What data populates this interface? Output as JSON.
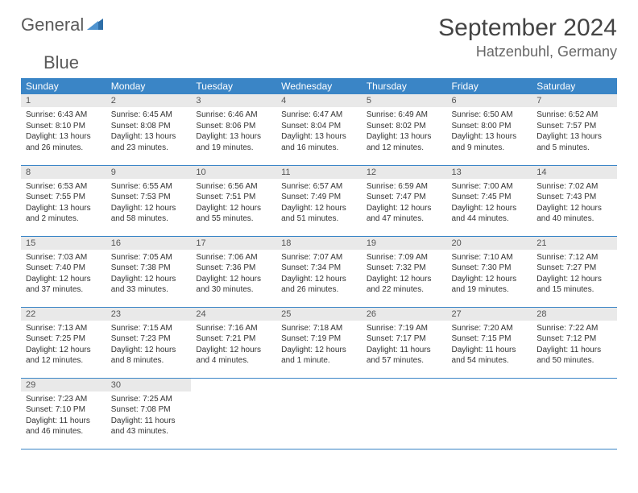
{
  "logo": {
    "text_a": "General",
    "text_b": "Blue"
  },
  "title": "September 2024",
  "location": "Hatzenbuhl, Germany",
  "colors": {
    "header_bg": "#3a85c6",
    "header_fg": "#ffffff",
    "daynum_bg": "#e9e9e9",
    "border": "#3a85c6",
    "logo_gray": "#5a5a5a",
    "logo_blue": "#3a7ab8"
  },
  "weekdays": [
    "Sunday",
    "Monday",
    "Tuesday",
    "Wednesday",
    "Thursday",
    "Friday",
    "Saturday"
  ],
  "weeks": [
    [
      {
        "n": "1",
        "sr": "Sunrise: 6:43 AM",
        "ss": "Sunset: 8:10 PM",
        "d1": "Daylight: 13 hours",
        "d2": "and 26 minutes."
      },
      {
        "n": "2",
        "sr": "Sunrise: 6:45 AM",
        "ss": "Sunset: 8:08 PM",
        "d1": "Daylight: 13 hours",
        "d2": "and 23 minutes."
      },
      {
        "n": "3",
        "sr": "Sunrise: 6:46 AM",
        "ss": "Sunset: 8:06 PM",
        "d1": "Daylight: 13 hours",
        "d2": "and 19 minutes."
      },
      {
        "n": "4",
        "sr": "Sunrise: 6:47 AM",
        "ss": "Sunset: 8:04 PM",
        "d1": "Daylight: 13 hours",
        "d2": "and 16 minutes."
      },
      {
        "n": "5",
        "sr": "Sunrise: 6:49 AM",
        "ss": "Sunset: 8:02 PM",
        "d1": "Daylight: 13 hours",
        "d2": "and 12 minutes."
      },
      {
        "n": "6",
        "sr": "Sunrise: 6:50 AM",
        "ss": "Sunset: 8:00 PM",
        "d1": "Daylight: 13 hours",
        "d2": "and 9 minutes."
      },
      {
        "n": "7",
        "sr": "Sunrise: 6:52 AM",
        "ss": "Sunset: 7:57 PM",
        "d1": "Daylight: 13 hours",
        "d2": "and 5 minutes."
      }
    ],
    [
      {
        "n": "8",
        "sr": "Sunrise: 6:53 AM",
        "ss": "Sunset: 7:55 PM",
        "d1": "Daylight: 13 hours",
        "d2": "and 2 minutes."
      },
      {
        "n": "9",
        "sr": "Sunrise: 6:55 AM",
        "ss": "Sunset: 7:53 PM",
        "d1": "Daylight: 12 hours",
        "d2": "and 58 minutes."
      },
      {
        "n": "10",
        "sr": "Sunrise: 6:56 AM",
        "ss": "Sunset: 7:51 PM",
        "d1": "Daylight: 12 hours",
        "d2": "and 55 minutes."
      },
      {
        "n": "11",
        "sr": "Sunrise: 6:57 AM",
        "ss": "Sunset: 7:49 PM",
        "d1": "Daylight: 12 hours",
        "d2": "and 51 minutes."
      },
      {
        "n": "12",
        "sr": "Sunrise: 6:59 AM",
        "ss": "Sunset: 7:47 PM",
        "d1": "Daylight: 12 hours",
        "d2": "and 47 minutes."
      },
      {
        "n": "13",
        "sr": "Sunrise: 7:00 AM",
        "ss": "Sunset: 7:45 PM",
        "d1": "Daylight: 12 hours",
        "d2": "and 44 minutes."
      },
      {
        "n": "14",
        "sr": "Sunrise: 7:02 AM",
        "ss": "Sunset: 7:43 PM",
        "d1": "Daylight: 12 hours",
        "d2": "and 40 minutes."
      }
    ],
    [
      {
        "n": "15",
        "sr": "Sunrise: 7:03 AM",
        "ss": "Sunset: 7:40 PM",
        "d1": "Daylight: 12 hours",
        "d2": "and 37 minutes."
      },
      {
        "n": "16",
        "sr": "Sunrise: 7:05 AM",
        "ss": "Sunset: 7:38 PM",
        "d1": "Daylight: 12 hours",
        "d2": "and 33 minutes."
      },
      {
        "n": "17",
        "sr": "Sunrise: 7:06 AM",
        "ss": "Sunset: 7:36 PM",
        "d1": "Daylight: 12 hours",
        "d2": "and 30 minutes."
      },
      {
        "n": "18",
        "sr": "Sunrise: 7:07 AM",
        "ss": "Sunset: 7:34 PM",
        "d1": "Daylight: 12 hours",
        "d2": "and 26 minutes."
      },
      {
        "n": "19",
        "sr": "Sunrise: 7:09 AM",
        "ss": "Sunset: 7:32 PM",
        "d1": "Daylight: 12 hours",
        "d2": "and 22 minutes."
      },
      {
        "n": "20",
        "sr": "Sunrise: 7:10 AM",
        "ss": "Sunset: 7:30 PM",
        "d1": "Daylight: 12 hours",
        "d2": "and 19 minutes."
      },
      {
        "n": "21",
        "sr": "Sunrise: 7:12 AM",
        "ss": "Sunset: 7:27 PM",
        "d1": "Daylight: 12 hours",
        "d2": "and 15 minutes."
      }
    ],
    [
      {
        "n": "22",
        "sr": "Sunrise: 7:13 AM",
        "ss": "Sunset: 7:25 PM",
        "d1": "Daylight: 12 hours",
        "d2": "and 12 minutes."
      },
      {
        "n": "23",
        "sr": "Sunrise: 7:15 AM",
        "ss": "Sunset: 7:23 PM",
        "d1": "Daylight: 12 hours",
        "d2": "and 8 minutes."
      },
      {
        "n": "24",
        "sr": "Sunrise: 7:16 AM",
        "ss": "Sunset: 7:21 PM",
        "d1": "Daylight: 12 hours",
        "d2": "and 4 minutes."
      },
      {
        "n": "25",
        "sr": "Sunrise: 7:18 AM",
        "ss": "Sunset: 7:19 PM",
        "d1": "Daylight: 12 hours",
        "d2": "and 1 minute."
      },
      {
        "n": "26",
        "sr": "Sunrise: 7:19 AM",
        "ss": "Sunset: 7:17 PM",
        "d1": "Daylight: 11 hours",
        "d2": "and 57 minutes."
      },
      {
        "n": "27",
        "sr": "Sunrise: 7:20 AM",
        "ss": "Sunset: 7:15 PM",
        "d1": "Daylight: 11 hours",
        "d2": "and 54 minutes."
      },
      {
        "n": "28",
        "sr": "Sunrise: 7:22 AM",
        "ss": "Sunset: 7:12 PM",
        "d1": "Daylight: 11 hours",
        "d2": "and 50 minutes."
      }
    ],
    [
      {
        "n": "29",
        "sr": "Sunrise: 7:23 AM",
        "ss": "Sunset: 7:10 PM",
        "d1": "Daylight: 11 hours",
        "d2": "and 46 minutes."
      },
      {
        "n": "30",
        "sr": "Sunrise: 7:25 AM",
        "ss": "Sunset: 7:08 PM",
        "d1": "Daylight: 11 hours",
        "d2": "and 43 minutes."
      },
      null,
      null,
      null,
      null,
      null
    ]
  ]
}
